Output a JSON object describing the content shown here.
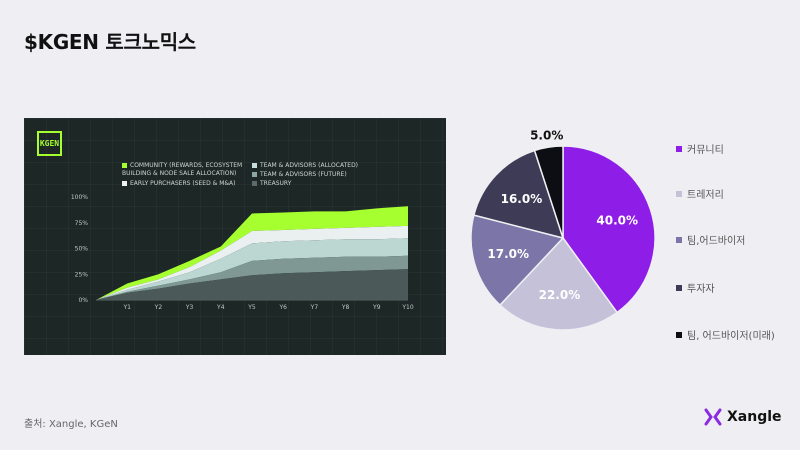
{
  "title": "$KGEN 토크노믹스",
  "source": "출처: Xangle, KGeN",
  "brand": {
    "name": "Xangle",
    "icon": "xangle-x-icon",
    "color": "#8a2be2"
  },
  "chart_data": [
    {
      "type": "area",
      "stacked": true,
      "logo_text": "KGEN",
      "categories": [
        "",
        "Y1",
        "Y2",
        "Y3",
        "Y4",
        "Y5",
        "Y6",
        "Y7",
        "Y8",
        "Y9",
        "Y10"
      ],
      "y_ticks": [
        "0%",
        "25%",
        "50%",
        "75%",
        "100%"
      ],
      "ylim": [
        0,
        100
      ],
      "grid": true,
      "legend": [
        {
          "name": "COMMUNITY (REWARDS, ECOSYSTEM",
          "name2": "BUILDING & NODE SALE ALLOCATION)",
          "color": "#a6ff2e"
        },
        {
          "name": "TEAM & ADVISORS (ALLOCATED)",
          "color": "#c5dedb"
        },
        {
          "name": "EARLY PURCHASERS (SEED & M&A)",
          "color": "#eef3f2"
        },
        {
          "name": "TEAM & ADVISORS (FUTURE)",
          "color": "#8ba5a1"
        },
        {
          "name": "TREASURY",
          "color": "#5a6b69"
        }
      ],
      "series_cumulative": [
        {
          "name": "TREASURY",
          "color": "#4b5a58",
          "values": [
            0,
            7,
            11,
            16,
            20,
            24,
            26,
            27,
            28,
            29,
            30
          ]
        },
        {
          "name": "TEAM & ADVISORS (FUTURE)",
          "color": "#7f9894",
          "values": [
            0,
            8,
            14,
            20,
            27,
            38,
            40,
            41,
            42,
            42,
            43
          ]
        },
        {
          "name": "TEAM & ADVISORS (ALLOCATED)",
          "color": "#bcd6d2",
          "values": [
            0,
            10,
            18,
            27,
            40,
            55,
            57,
            58,
            59,
            59,
            60
          ]
        },
        {
          "name": "EARLY PURCHASERS (SEED & M&A)",
          "color": "#e9f0ef",
          "values": [
            0,
            12,
            20,
            32,
            48,
            67,
            68,
            69,
            70,
            71,
            72
          ]
        },
        {
          "name": "COMMUNITY (REWARDS, ECOSYSTEM BUILDING & NODE SALE ALLOCATION)",
          "color": "#a6ff2e",
          "values": [
            0,
            16,
            25,
            38,
            52,
            84,
            85,
            86,
            86,
            89,
            91
          ]
        }
      ]
    },
    {
      "type": "pie",
      "start_angle_deg": 0,
      "slices": [
        {
          "label": "커뮤니티",
          "value": 40.0,
          "display": "40.0%",
          "color": "#8f1de8",
          "label_color": "#ffffff"
        },
        {
          "label": "트레저리",
          "value": 22.0,
          "display": "22.0%",
          "color": "#c4c1d9",
          "label_color": "#ffffff"
        },
        {
          "label": "팀,어드바이저",
          "value": 17.0,
          "display": "17.0%",
          "color": "#7b75a8",
          "label_color": "#ffffff"
        },
        {
          "label": "투자자",
          "value": 16.0,
          "display": "16.0%",
          "color": "#3e3b56",
          "label_color": "#ffffff"
        },
        {
          "label": "팀, 어드바이저(미래)",
          "value": 5.0,
          "display": "5.0%",
          "color": "#0d0d14",
          "label_color": "#111111"
        }
      ]
    }
  ]
}
